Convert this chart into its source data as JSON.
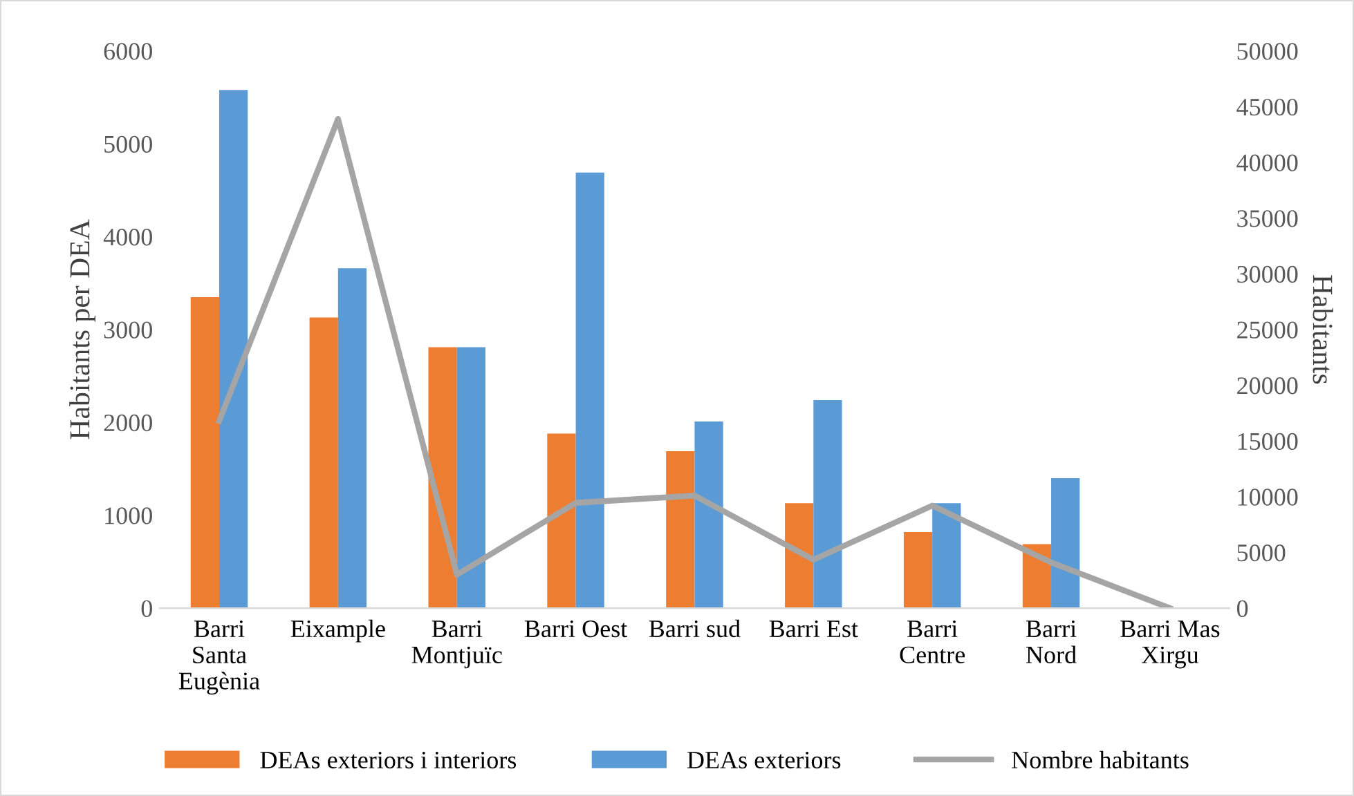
{
  "chart_data": {
    "type": "bar",
    "ylabel": "Habitants per DEA",
    "y2label": "Habitants",
    "categories": [
      "Barri\nSanta\nEugènia",
      "Eixample",
      "Barri\nMontjuïc",
      "Barri Oest",
      "Barri sud",
      "Barri Est",
      "Barri\nCentre",
      "Barri\nNord",
      "Barri Mas\nXirgu"
    ],
    "series": [
      {
        "name": "DEAs exteriors i interiors",
        "color": "#ed7d31",
        "values": [
          3350,
          3130,
          2810,
          1880,
          1690,
          1130,
          820,
          690,
          0
        ]
      },
      {
        "name": "DEAs exteriors",
        "color": "#5b9bd5",
        "values": [
          5580,
          3660,
          2810,
          4690,
          2010,
          2240,
          1130,
          1400,
          0
        ]
      },
      {
        "name": "Nombre habitants",
        "type": "line",
        "axis": "y2",
        "color": "#a5a5a5",
        "values": [
          16800,
          43900,
          3000,
          9450,
          10100,
          4350,
          9200,
          4100,
          0
        ]
      }
    ],
    "ylim": [
      0,
      6000
    ],
    "yticks": [
      0,
      1000,
      2000,
      3000,
      4000,
      5000,
      6000
    ],
    "y2lim": [
      0,
      50000
    ],
    "y2ticks": [
      0,
      5000,
      10000,
      15000,
      20000,
      25000,
      30000,
      35000,
      40000,
      45000,
      50000
    ],
    "grid": false,
    "legend": "bottom",
    "marker": "none",
    "line_style": "solid"
  }
}
